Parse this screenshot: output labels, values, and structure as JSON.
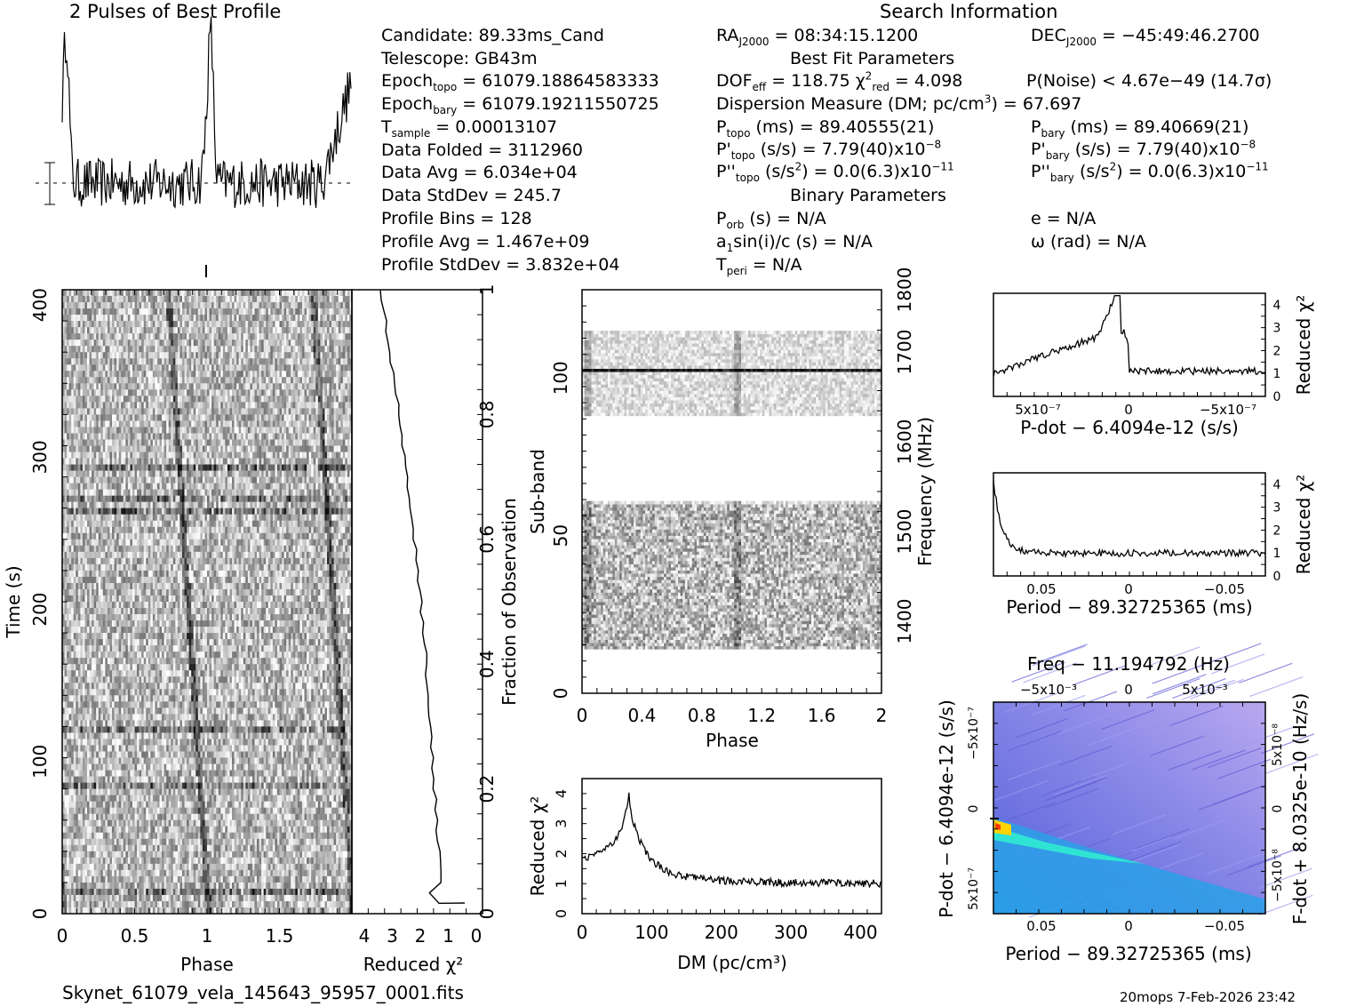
{
  "colors": {
    "ink": "#000000",
    "map_low": "#3d2bd6",
    "map_mid": "#26c9ff",
    "map_high": "#ffde00",
    "map_bg": "#7b7de6"
  },
  "header": {
    "profile_title": "2 Pulses of Best Profile",
    "search_title": "Search Information",
    "best_fit_title": "Best Fit Parameters",
    "binary_title": "Binary Parameters",
    "filename": "Skynet_61079_vela_145643_95957_0001.fits",
    "footer": "20mops   7-Feb-2026 23:42"
  },
  "info": {
    "candidate": "Candidate:  89.33ms_Cand",
    "telescope": "Telescope:  GB43m",
    "epoch_topo": "Epoch<sub>topo</sub> = 61079.18864583333",
    "epoch_bary": "Epoch<sub>bary</sub> = 61079.19211550725",
    "t_sample": "T<sub>sample</sub>         =  0.00013107",
    "data_folded": "Data Folded    =  3112960",
    "data_avg": "Data Avg        =  6.034e+04",
    "data_stddev": "Data StdDev   =  245.7",
    "profile_bins": "Profile Bins    =  128",
    "profile_avg": "Profile Avg     =  1.467e+09",
    "profile_stddev": "Profile StdDev =  3.832e+04",
    "ra": "RA<sub>J2000</sub> = 08:34:15.1200",
    "dec": "DEC<sub>J2000</sub> = −45:49:46.2700",
    "dof": "DOF<sub>eff</sub> = 118.75  χ<sup>2</sup><sub>red</sub> = 4.098",
    "pnoise": "P(Noise) < 4.67e−49   (14.7σ)",
    "dm": "Dispersion Measure (DM; pc/cm<sup>3</sup>) = 67.697",
    "p_topo": "P<sub>topo</sub> (ms) =  89.40555(21)",
    "p_bary": "P<sub>bary</sub> (ms) =  89.40669(21)",
    "pd_topo": "P'<sub>topo</sub> (s/s) =  7.79(40)x10<sup>−8</sup>",
    "pd_bary": "P'<sub>bary</sub> (s/s) =  7.79(40)x10<sup>−8</sup>",
    "pdd_topo": "P''<sub>topo</sub> (s/s<sup>2</sup>) = 0.0(6.3)x10<sup>−11</sup>",
    "pdd_bary": "P''<sub>bary</sub> (s/s<sup>2</sup>) = 0.0(6.3)x10<sup>−11</sup>",
    "p_orb": "P<sub>orb</sub> (s) = N/A",
    "a1": "a<sub>1</sub>sin(i)/c (s) = N/A",
    "t_peri": "T<sub>peri</sub> = N/A",
    "e": "e = N/A",
    "omega": "ω (rad) = N/A"
  },
  "chart_data": [
    {
      "id": "profile",
      "type": "line",
      "title": "2 Pulses of Best Profile",
      "x": [
        0,
        2
      ],
      "peaks_phase": [
        0.03,
        1.03
      ],
      "baseline_level": 0.35,
      "peak_level": 1.0
    },
    {
      "id": "time_phase",
      "type": "heatmap",
      "xlabel": "Phase",
      "ylabel": "Time (s)",
      "xlim": [
        0,
        2
      ],
      "ylim": [
        0,
        410
      ],
      "xticks": [
        "0",
        "0.5",
        "1",
        "1.5"
      ],
      "yticks": [
        "0",
        "100",
        "200",
        "300",
        "400"
      ]
    },
    {
      "id": "reduced_chi_time",
      "type": "line",
      "xlabel": "Reduced χ²",
      "xticks": [
        "4",
        "3",
        "2",
        "1",
        "0"
      ],
      "right_label": "Fraction of Observation",
      "right_ticks": [
        "0",
        "0.2",
        "0.4",
        "0.6",
        "0.8",
        "1"
      ]
    },
    {
      "id": "subband_phase",
      "type": "heatmap",
      "xlabel": "Phase",
      "ylabel": "Sub-band",
      "xlim": [
        0,
        2
      ],
      "ylim": [
        0,
        128
      ],
      "xticks": [
        "0",
        "0.4",
        "0.8",
        "1.2",
        "1.6",
        "2"
      ],
      "yticks": [
        "0",
        "50",
        "100"
      ],
      "right_label": "Frequency (MHz)",
      "right_ticks": [
        "1400",
        "1500",
        "1600",
        "1700",
        "1800"
      ]
    },
    {
      "id": "dm_curve",
      "type": "line",
      "xlabel": "DM (pc/cm³)",
      "ylabel": "Reduced χ²",
      "xlim": [
        0,
        430
      ],
      "ylim": [
        0,
        4.5
      ],
      "xticks": [
        "0",
        "100",
        "200",
        "300",
        "400"
      ],
      "yticks": [
        "0",
        "1",
        "2",
        "3",
        "4"
      ],
      "peak_dm": 67.697,
      "peak_value": 4.098
    },
    {
      "id": "pdot_curve",
      "type": "line",
      "xlabel": "P-dot − 6.4094e-12 (s/s)",
      "ylabel": "Reduced χ²",
      "xticks": [
        "5x10⁻⁷",
        "0",
        "−5x10⁻⁷"
      ],
      "yticks": [
        "0",
        "1",
        "2",
        "3",
        "4"
      ]
    },
    {
      "id": "period_curve",
      "type": "line",
      "xlabel": "Period − 89.32725365 (ms)",
      "ylabel": "Reduced χ²",
      "xticks": [
        "0.05",
        "0",
        "−0.05"
      ],
      "yticks": [
        "0",
        "1",
        "2",
        "3",
        "4"
      ]
    },
    {
      "id": "p_pdot_map",
      "type": "heatmap",
      "title": "Freq − 11.194792 (Hz)",
      "xlabel": "Period − 89.32725365 (ms)",
      "ylabel": "P-dot − 6.4094e-12 (s/s)",
      "right_label": "F-dot + 8.0325e-10 (Hz/s)",
      "xticks": [
        "0.05",
        "0",
        "−0.05"
      ],
      "top_ticks": [
        "−5x10⁻³",
        "0",
        "5x10⁻³"
      ],
      "yticks": [
        "5x10⁻⁷",
        "0",
        "−5x10⁻⁷"
      ],
      "right_ticks": [
        "−5x10⁻⁸",
        "0",
        "5x10⁻⁸"
      ]
    }
  ]
}
